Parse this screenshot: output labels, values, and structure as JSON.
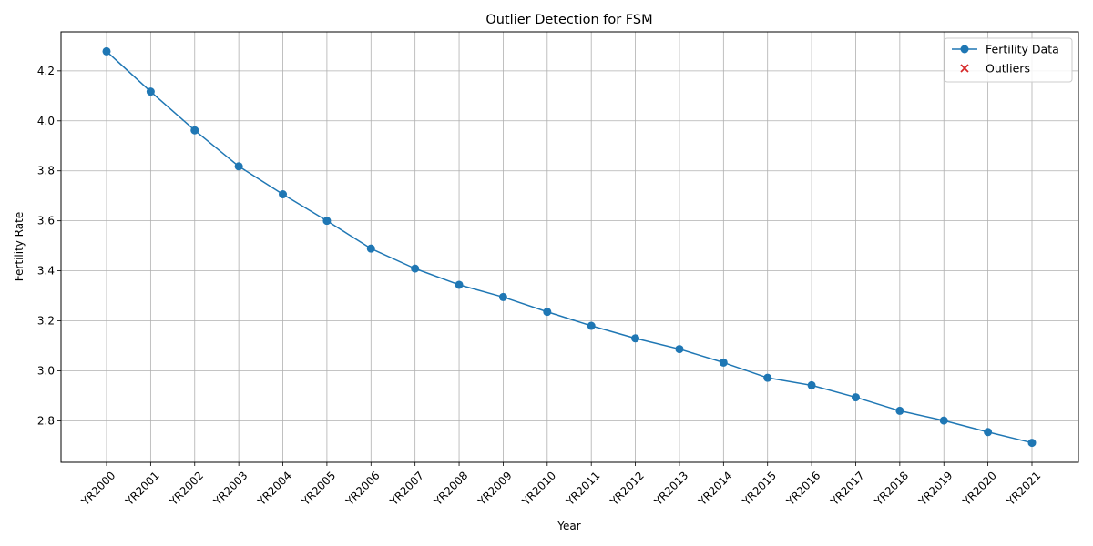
{
  "chart_data": {
    "type": "line",
    "title": "Outlier Detection for FSM",
    "xlabel": "Year",
    "ylabel": "Fertility Rate",
    "categories": [
      "YR2000",
      "YR2001",
      "YR2002",
      "YR2003",
      "YR2004",
      "YR2005",
      "YR2006",
      "YR2007",
      "YR2008",
      "YR2009",
      "YR2010",
      "YR2011",
      "YR2012",
      "YR2013",
      "YR2014",
      "YR2015",
      "YR2016",
      "YR2017",
      "YR2018",
      "YR2019",
      "YR2020",
      "YR2021"
    ],
    "series": [
      {
        "name": "Fertility Data",
        "color": "#1f77b4",
        "values": [
          4.278,
          4.117,
          3.962,
          3.818,
          3.706,
          3.6,
          3.489,
          3.409,
          3.344,
          3.295,
          3.236,
          3.18,
          3.13,
          3.087,
          3.033,
          2.972,
          2.942,
          2.894,
          2.84,
          2.801,
          2.755,
          2.712
        ]
      }
    ],
    "outliers": {
      "name": "Outliers",
      "color": "#d62728",
      "marker": "x",
      "points": []
    },
    "yticks": [
      2.8,
      3.0,
      3.2,
      3.4,
      3.6,
      3.8,
      4.0,
      4.2
    ],
    "ylim": [
      2.634,
      4.356
    ],
    "grid": true,
    "legend_position": "top-right"
  }
}
